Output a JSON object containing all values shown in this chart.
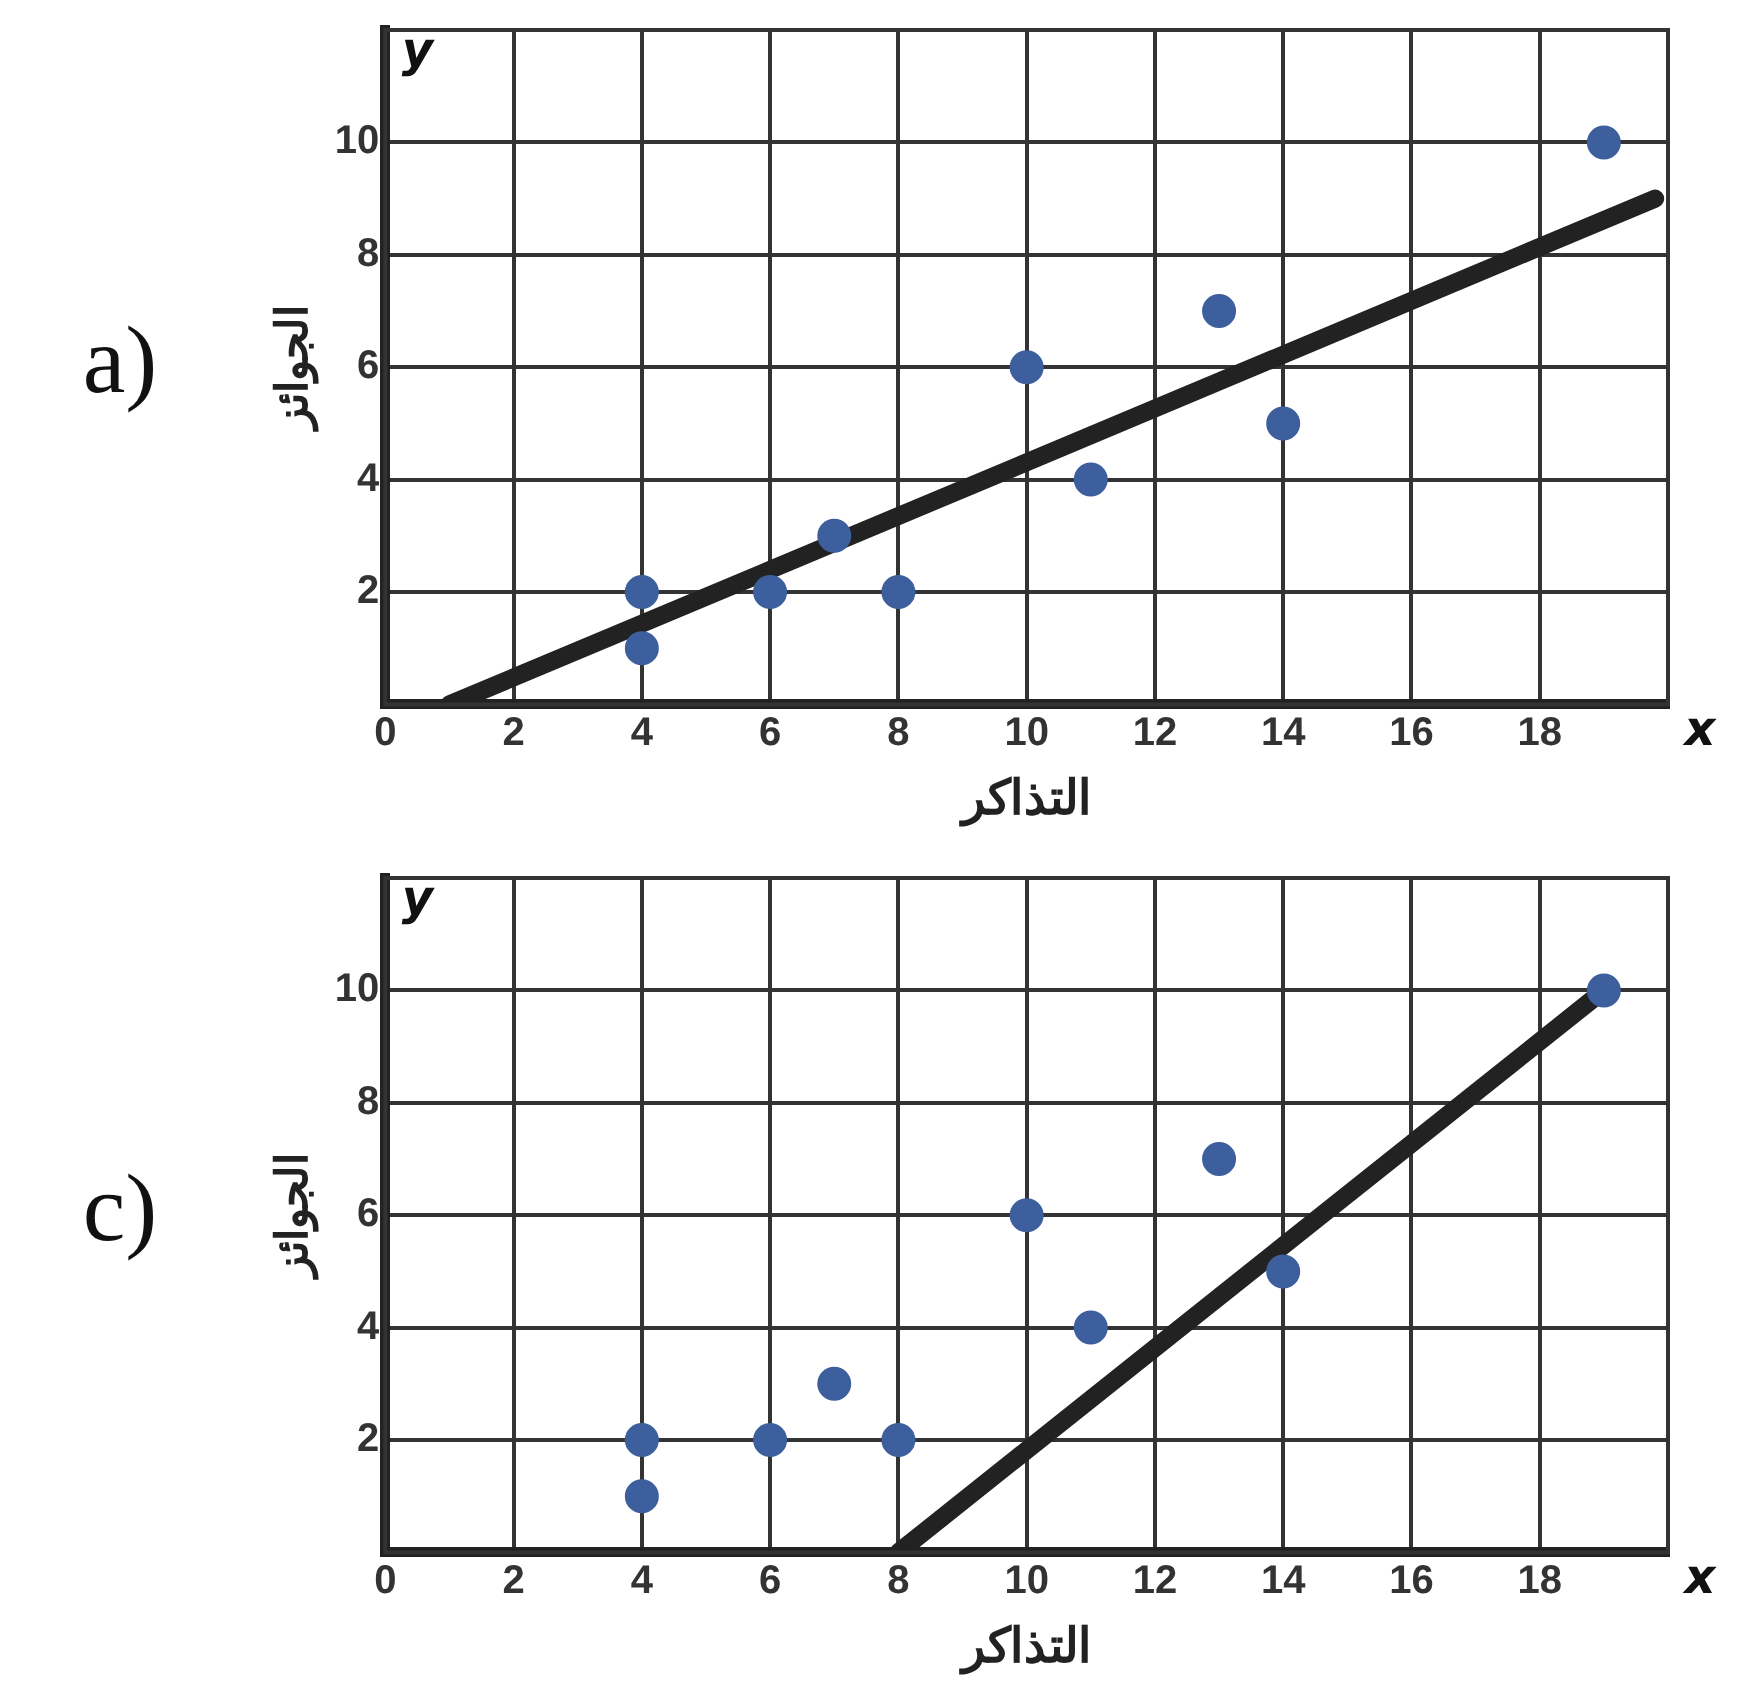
{
  "chart_data": [
    {
      "type": "scatter",
      "title": "a)",
      "xlabel": "التذاكر",
      "ylabel": "الجوائز",
      "annotations": [
        "y",
        "x"
      ],
      "xlim": [
        0,
        20
      ],
      "ylim": [
        0,
        12
      ],
      "xticks": [
        0,
        2,
        4,
        6,
        8,
        10,
        12,
        14,
        16,
        18
      ],
      "yticks": [
        2,
        4,
        6,
        8,
        10
      ],
      "grid": true,
      "legend": false,
      "marker": "circle",
      "series": [
        {
          "type": "scatter",
          "color": "#3d5f9e",
          "x": [
            4,
            4,
            6,
            7,
            8,
            10,
            11,
            13,
            14,
            19
          ],
          "values": [
            2,
            1,
            2,
            3,
            2,
            6,
            4,
            7,
            5,
            10
          ]
        },
        {
          "type": "line",
          "color": "#222222",
          "marker": "none",
          "x": [
            1,
            19.8
          ],
          "values": [
            0,
            9
          ]
        }
      ]
    },
    {
      "type": "scatter",
      "title": "c)",
      "xlabel": "التذاكر",
      "ylabel": "الجوائز",
      "annotations": [
        "y",
        "x"
      ],
      "xlim": [
        0,
        20
      ],
      "ylim": [
        0,
        12
      ],
      "xticks": [
        0,
        2,
        4,
        6,
        8,
        10,
        12,
        14,
        16,
        18
      ],
      "yticks": [
        2,
        4,
        6,
        8,
        10
      ],
      "grid": true,
      "legend": false,
      "marker": "circle",
      "series": [
        {
          "type": "scatter",
          "color": "#3d5f9e",
          "x": [
            4,
            4,
            6,
            7,
            8,
            10,
            11,
            13,
            14,
            19
          ],
          "values": [
            2,
            1,
            2,
            3,
            2,
            6,
            4,
            7,
            5,
            10
          ]
        },
        {
          "type": "line",
          "color": "#222222",
          "marker": "none",
          "x": [
            8,
            19
          ],
          "values": [
            0,
            10
          ]
        }
      ]
    }
  ]
}
